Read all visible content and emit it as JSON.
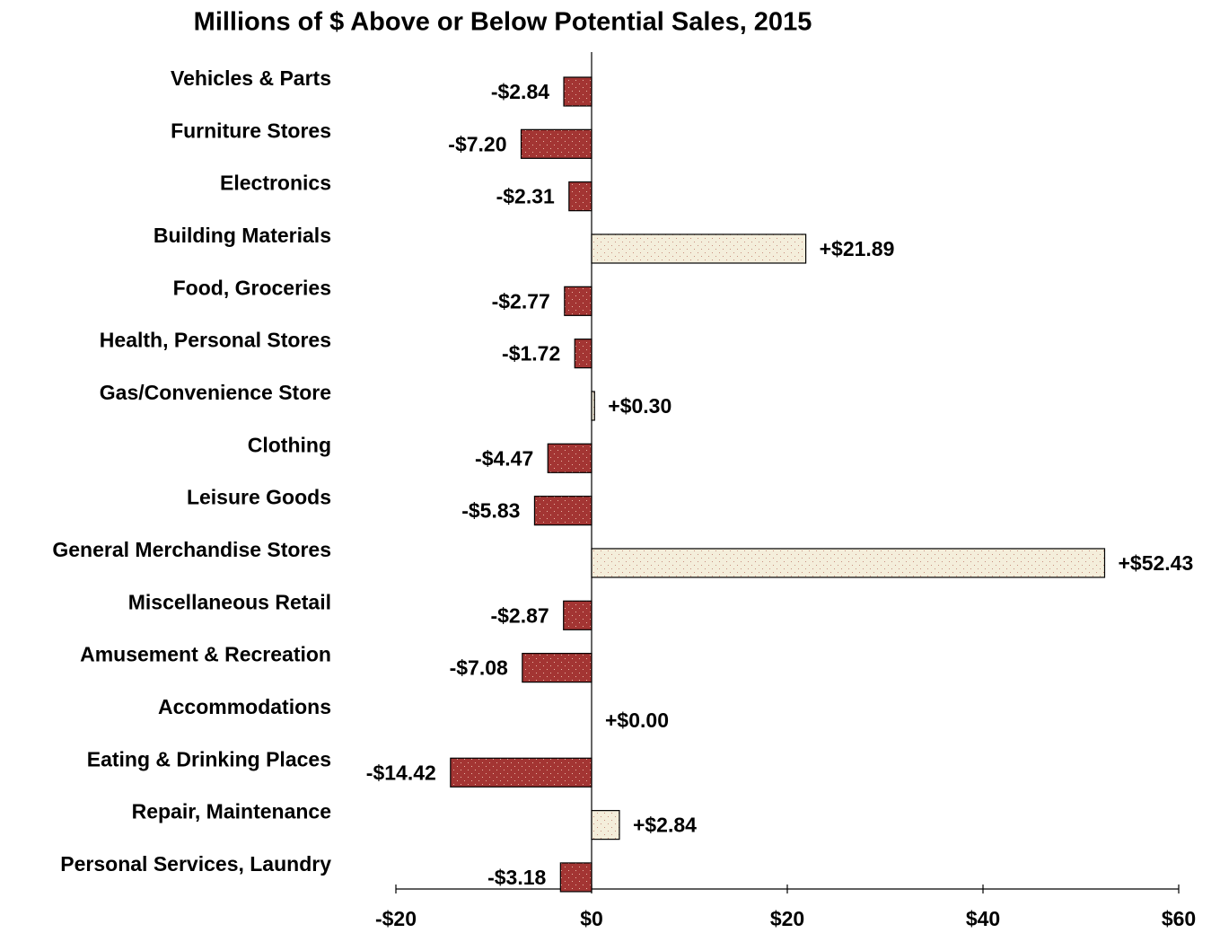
{
  "chart_data": {
    "type": "hbar",
    "title": "Millions of $ Above or Below Potential Sales, 2015",
    "categories": [
      "Vehicles & Parts",
      "Furniture Stores",
      "Electronics",
      "Building Materials",
      "Food, Groceries",
      "Health, Personal Stores",
      "Gas/Convenience Store",
      "Clothing",
      "Leisure Goods",
      "General Merchandise Stores",
      "Miscellaneous Retail",
      "Amusement & Recreation",
      "Accommodations",
      "Eating & Drinking Places",
      "Repair, Maintenance",
      "Personal Services, Laundry"
    ],
    "values": [
      -2.84,
      -7.2,
      -2.31,
      21.89,
      -2.77,
      -1.72,
      0.3,
      -4.47,
      -5.83,
      52.43,
      -2.87,
      -7.08,
      0.0,
      -14.42,
      2.84,
      -3.18
    ],
    "value_labels": [
      "-$2.84",
      "-$7.20",
      "-$2.31",
      "+$21.89",
      "-$2.77",
      "-$1.72",
      "+$0.30",
      "-$4.47",
      "-$5.83",
      "+$52.43",
      "-$2.87",
      "-$7.08",
      "+$0.00",
      "-$14.42",
      "+$2.84",
      "-$3.18"
    ],
    "negative_color": "#a33533",
    "positive_color": "#f4eedb",
    "xlim": [
      -20,
      60
    ],
    "xticks": [
      {
        "value": -20,
        "label": "-$20"
      },
      {
        "value": 0,
        "label": "$0"
      },
      {
        "value": 20,
        "label": "$20"
      },
      {
        "value": 40,
        "label": "$40"
      },
      {
        "value": 60,
        "label": "$60"
      }
    ]
  }
}
